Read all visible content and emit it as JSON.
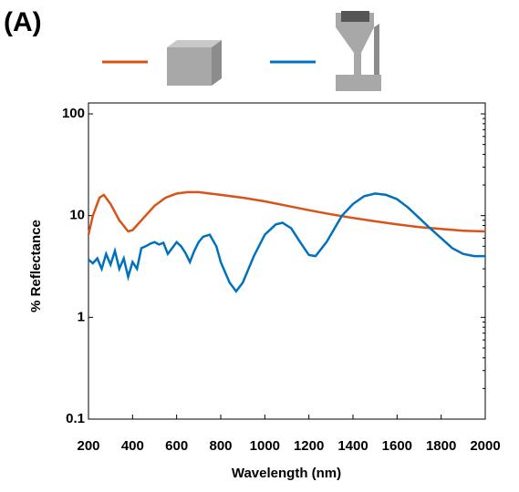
{
  "chart_data": {
    "type": "line",
    "title": "(A)",
    "x_label": "Wavelength (nm)",
    "y_label": "% Reflectance",
    "log_y": true,
    "grid": false,
    "xlim": [
      200,
      2000
    ],
    "xticks": [
      200,
      400,
      600,
      800,
      1000,
      1200,
      1400,
      1600,
      1800,
      2000
    ],
    "ylim": [
      0.1,
      100
    ],
    "yticks": [
      0.1,
      1,
      10,
      100
    ],
    "series": [
      {
        "color": "#d95319",
        "x": [
          200,
          220,
          250,
          270,
          300,
          340,
          380,
          400,
          450,
          500,
          550,
          600,
          650,
          700,
          800,
          900,
          1000,
          1100,
          1200,
          1300,
          1400,
          1500,
          1600,
          1700,
          1800,
          1900,
          2000
        ],
        "values": [
          6.5,
          10,
          15,
          16,
          13,
          9,
          7,
          7.2,
          9.5,
          12.5,
          15,
          16.5,
          17,
          17,
          16,
          15,
          13.8,
          12.5,
          11.3,
          10.3,
          9.5,
          8.8,
          8.2,
          7.7,
          7.4,
          7.1,
          7.0
        ]
      },
      {
        "color": "#0072bd",
        "x": [
          200,
          220,
          240,
          260,
          280,
          300,
          320,
          340,
          360,
          380,
          400,
          420,
          440,
          460,
          480,
          500,
          520,
          540,
          560,
          580,
          600,
          620,
          640,
          660,
          680,
          700,
          720,
          750,
          780,
          800,
          840,
          870,
          900,
          950,
          1000,
          1050,
          1080,
          1120,
          1160,
          1200,
          1230,
          1280,
          1350,
          1400,
          1450,
          1500,
          1550,
          1600,
          1650,
          1700,
          1750,
          1800,
          1850,
          1900,
          1950,
          2000
        ],
        "values": [
          3.7,
          3.4,
          3.8,
          3.0,
          4.2,
          3.3,
          4.5,
          3.0,
          3.8,
          2.5,
          3.5,
          3.0,
          4.8,
          5.0,
          5.3,
          5.5,
          5.2,
          5.4,
          4.2,
          4.8,
          5.5,
          5.0,
          4.3,
          3.5,
          4.5,
          5.5,
          6.2,
          6.5,
          5.0,
          3.5,
          2.2,
          1.8,
          2.2,
          4.0,
          6.5,
          8.2,
          8.5,
          7.5,
          5.5,
          4.1,
          4.0,
          5.5,
          10,
          13,
          15.5,
          16.5,
          16,
          14.5,
          12,
          9.5,
          7.5,
          6.0,
          4.8,
          4.2,
          4.0,
          4.0
        ]
      }
    ]
  }
}
